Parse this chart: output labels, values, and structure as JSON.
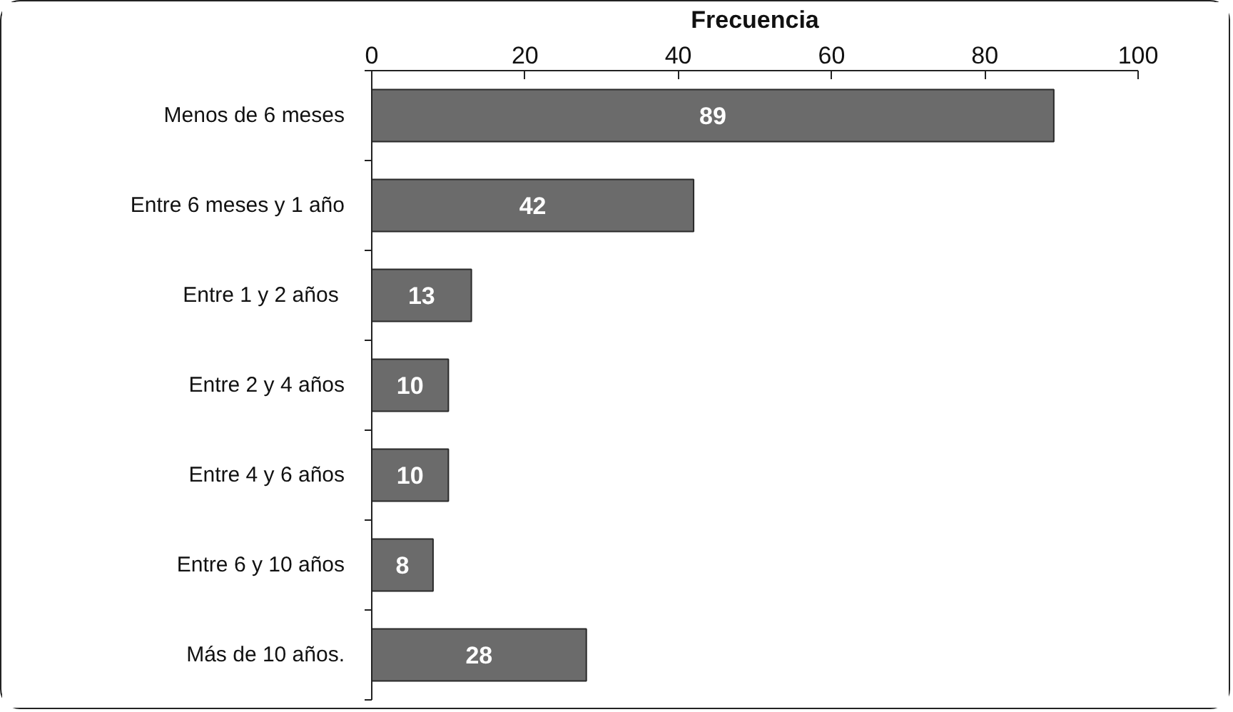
{
  "chart_data": {
    "type": "bar",
    "orientation": "horizontal",
    "xlabel": "Frecuencia",
    "categories": [
      "Menos de 6 meses",
      "Entre 6 meses y 1 año",
      "Entre 1 y  2 años",
      "Entre 2 y 4 años",
      "Entre 4 y 6 años",
      "Entre 6 y 10 años",
      "Más de 10 años."
    ],
    "values": [
      89,
      42,
      13,
      10,
      10,
      8,
      28
    ],
    "color": "#6b6b6b",
    "xlim": [
      0,
      100
    ],
    "xticks": [
      0,
      20,
      40,
      60,
      80,
      100
    ],
    "data_labels": true
  }
}
